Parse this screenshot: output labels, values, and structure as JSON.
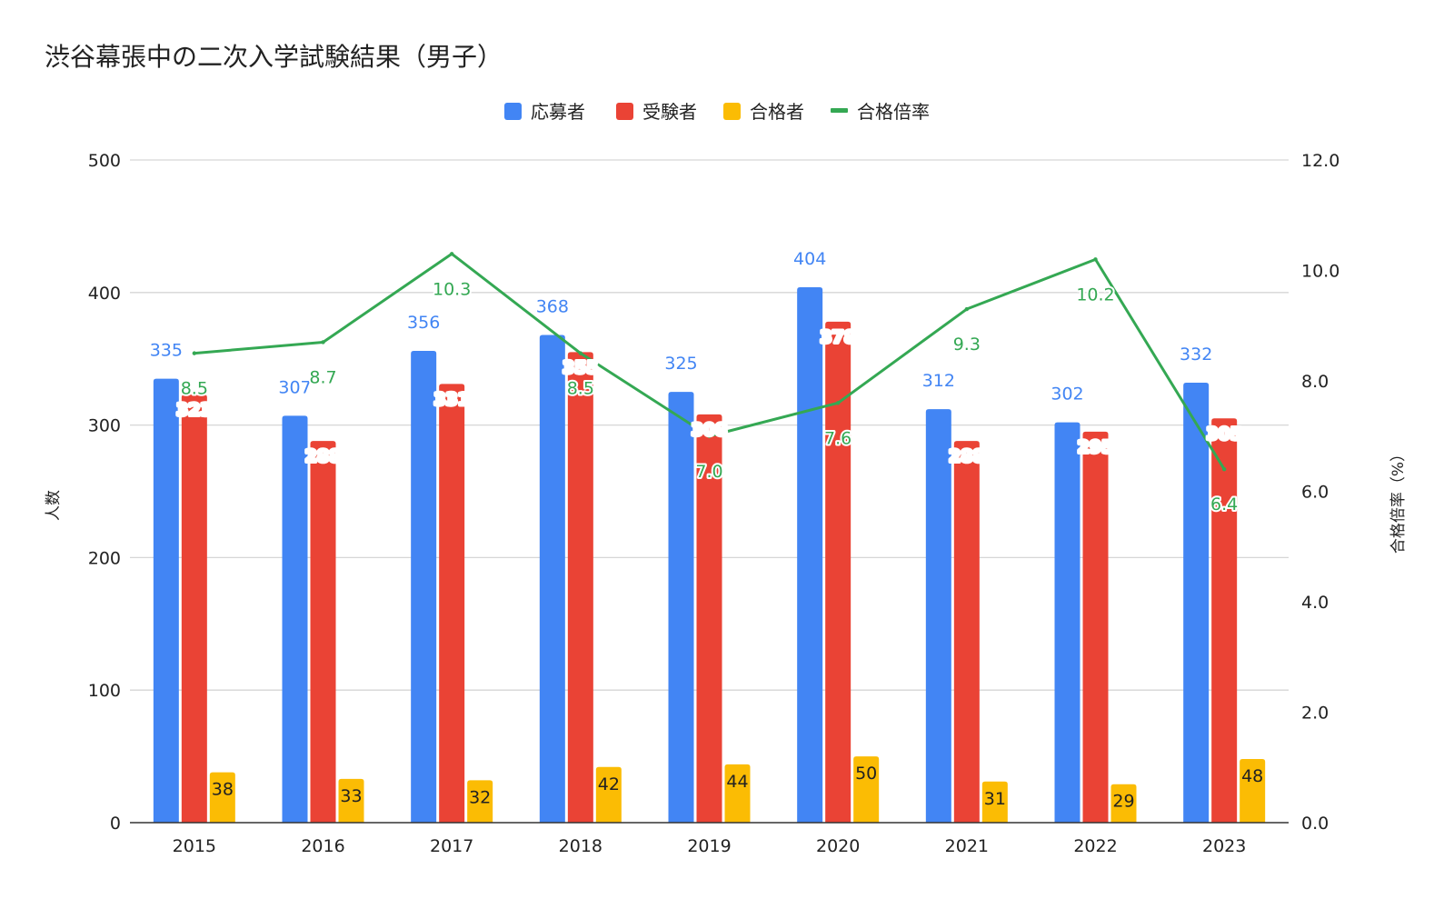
{
  "chart_data": {
    "type": "bar",
    "title": "渋谷幕張中の二次入学試験結果（男子）",
    "categories": [
      "2015",
      "2016",
      "2017",
      "2018",
      "2019",
      "2020",
      "2021",
      "2022",
      "2023"
    ],
    "series": [
      {
        "name": "応募者",
        "type": "bar",
        "axis": "left",
        "color": "#4285f4",
        "label_color": "#4285f4",
        "values": [
          335,
          307,
          356,
          368,
          325,
          404,
          312,
          302,
          332
        ]
      },
      {
        "name": "受験者",
        "type": "bar",
        "axis": "left",
        "color": "#ea4335",
        "label_color": "#ffffff",
        "values": [
          323,
          288,
          331,
          355,
          308,
          378,
          288,
          295,
          305
        ]
      },
      {
        "name": "合格者",
        "type": "bar",
        "axis": "left",
        "color": "#fbbc04",
        "label_color": "#222222",
        "values": [
          38,
          33,
          32,
          42,
          44,
          50,
          31,
          29,
          48
        ]
      },
      {
        "name": "合格倍率",
        "type": "line",
        "axis": "right",
        "color": "#34a853",
        "label_color": "#34a853",
        "values": [
          8.5,
          8.7,
          10.3,
          8.5,
          7.0,
          7.6,
          9.3,
          10.2,
          6.4
        ]
      }
    ],
    "ylabel": "人数",
    "ylabel_right": "合格倍率（%）",
    "ylim": [
      0,
      500
    ],
    "ylim_right": [
      0,
      12
    ],
    "yticks": [
      "0",
      "100",
      "200",
      "300",
      "400",
      "500"
    ],
    "yticks_right": [
      "0.0",
      "2.0",
      "4.0",
      "6.0",
      "8.0",
      "10.0",
      "12.0"
    ],
    "legend": "top-center",
    "grid": true
  }
}
